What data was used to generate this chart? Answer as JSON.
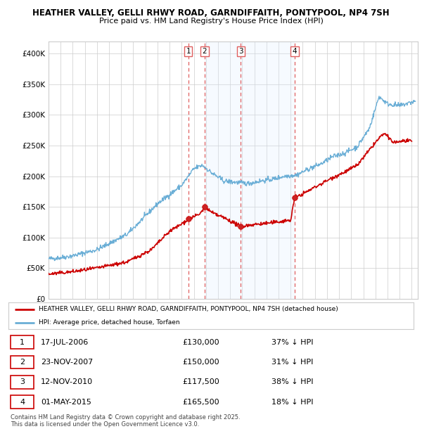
{
  "title1": "HEATHER VALLEY, GELLI RHWY ROAD, GARNDIFFAITH, PONTYPOOL, NP4 7SH",
  "title2": "Price paid vs. HM Land Registry's House Price Index (HPI)",
  "xlim_start": 1995.0,
  "xlim_end": 2025.5,
  "ylim_min": 0,
  "ylim_max": 420000,
  "yticks": [
    0,
    50000,
    100000,
    150000,
    200000,
    250000,
    300000,
    350000,
    400000
  ],
  "ytick_labels": [
    "£0",
    "£50K",
    "£100K",
    "£150K",
    "£200K",
    "£250K",
    "£300K",
    "£350K",
    "£400K"
  ],
  "xtick_years": [
    1995,
    1996,
    1997,
    1998,
    1999,
    2000,
    2001,
    2002,
    2003,
    2004,
    2005,
    2006,
    2007,
    2008,
    2009,
    2010,
    2011,
    2012,
    2013,
    2014,
    2015,
    2016,
    2017,
    2018,
    2019,
    2020,
    2021,
    2022,
    2023,
    2024,
    2025
  ],
  "vline_positions": [
    2006.54,
    2007.9,
    2010.87,
    2015.33
  ],
  "vline_labels": [
    "1",
    "2",
    "3",
    "4"
  ],
  "sale_dates": [
    2006.54,
    2007.9,
    2010.87,
    2015.33
  ],
  "sale_prices": [
    130000,
    150000,
    117500,
    165500
  ],
  "blue_band_start": 2007.9,
  "blue_band_end": 2015.33,
  "legend_line1_label": "HEATHER VALLEY, GELLI RHWY ROAD, GARNDIFFAITH, PONTYPOOL, NP4 7SH (detached house)",
  "legend_line2_label": "HPI: Average price, detached house, Torfaen",
  "table_rows": [
    {
      "num": "1",
      "date": "17-JUL-2006",
      "price": "£130,000",
      "pct": "37% ↓ HPI"
    },
    {
      "num": "2",
      "date": "23-NOV-2007",
      "price": "£150,000",
      "pct": "31% ↓ HPI"
    },
    {
      "num": "3",
      "date": "12-NOV-2010",
      "price": "£117,500",
      "pct": "38% ↓ HPI"
    },
    {
      "num": "4",
      "date": "01-MAY-2015",
      "price": "£165,500",
      "pct": "18% ↓ HPI"
    }
  ],
  "footer": "Contains HM Land Registry data © Crown copyright and database right 2025.\nThis data is licensed under the Open Government Licence v3.0.",
  "red_color": "#cc0000",
  "blue_color": "#6aaed6",
  "vline_color": "#e06060",
  "vline_band_color": "#ddeeff",
  "background_color": "#ffffff",
  "grid_color": "#cccccc"
}
